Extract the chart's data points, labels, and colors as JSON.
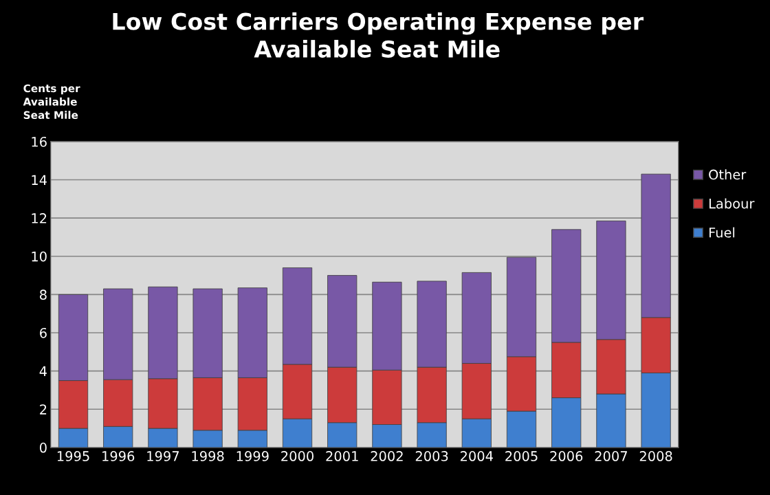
{
  "chart_data": {
    "type": "bar",
    "title": "Low Cost Carriers Operating Expense per\nAvailable Seat Mile",
    "ylabel": "Cents per\nAvailable\nSeat Mile",
    "categories": [
      "1995",
      "1996",
      "1997",
      "1998",
      "1999",
      "2000",
      "2001",
      "2002",
      "2003",
      "2004",
      "2005",
      "2006",
      "2007",
      "2008"
    ],
    "stacked": true,
    "series": [
      {
        "name": "Fuel",
        "color": "#3f7fcf",
        "values": [
          1.0,
          1.1,
          1.0,
          0.9,
          0.9,
          1.5,
          1.3,
          1.2,
          1.3,
          1.5,
          1.9,
          2.6,
          2.8,
          3.9
        ]
      },
      {
        "name": "Labour",
        "color": "#cc3b3b",
        "values": [
          2.5,
          2.45,
          2.6,
          2.75,
          2.75,
          2.85,
          2.9,
          2.85,
          2.9,
          2.9,
          2.85,
          2.9,
          2.85,
          2.9
        ]
      },
      {
        "name": "Other",
        "color": "#7858a6",
        "values": [
          4.5,
          4.75,
          4.8,
          4.65,
          4.7,
          5.05,
          4.8,
          4.6,
          4.5,
          4.75,
          5.2,
          5.9,
          6.2,
          7.5
        ]
      }
    ],
    "ylim": [
      0,
      16
    ],
    "yticks": [
      0,
      2,
      4,
      6,
      8,
      10,
      12,
      14,
      16
    ],
    "grid": "y",
    "legend": "right"
  }
}
